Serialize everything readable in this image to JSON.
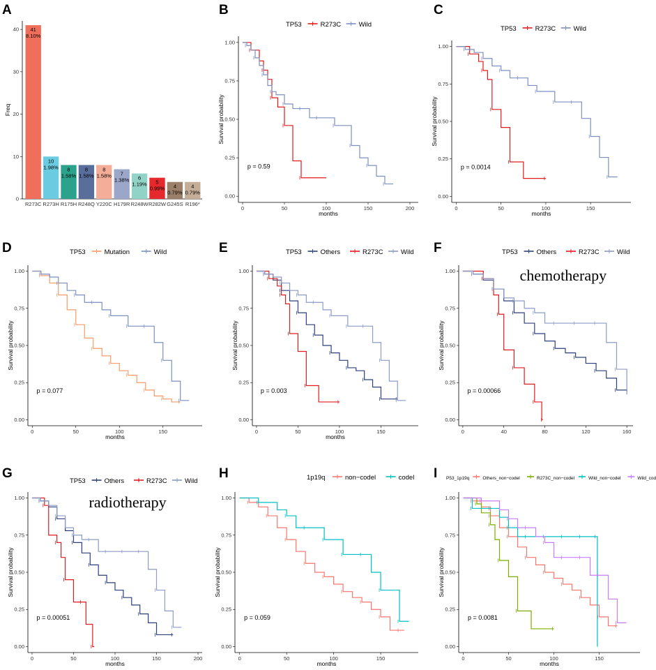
{
  "chart_data": [
    {
      "panel": "A",
      "type": "bar",
      "ylabel": "Freq",
      "xlabel": "",
      "ylim": [
        0,
        42
      ],
      "yticks": [
        0,
        10,
        20,
        30,
        40
      ],
      "categories": [
        "R273C",
        "R273H",
        "R175H",
        "R248Q",
        "Y220C",
        "H179R",
        "R248W",
        "R282W",
        "G245S",
        "R196*"
      ],
      "values": [
        41,
        10,
        8,
        8,
        8,
        7,
        6,
        5,
        4,
        4
      ],
      "percent_labels": [
        "8.10%",
        "1.98%",
        "1.58%",
        "1.58%",
        "1.58%",
        "1.38%",
        "1.19%",
        "0.99%",
        "0.79%",
        "0.79%"
      ],
      "colors": [
        "#ef6f5a",
        "#6bcbe0",
        "#2aa28c",
        "#5a6e9c",
        "#f4ad98",
        "#9ba7c9",
        "#92d3c7",
        "#e42a2c",
        "#9c7f69",
        "#c4ae98"
      ]
    },
    {
      "panel": "B",
      "type": "line",
      "legend_title": "TP53",
      "xlabel": "months",
      "ylabel": "Survival probability",
      "xlim": [
        -5,
        210
      ],
      "xticks": [
        0,
        50,
        100,
        150,
        200
      ],
      "ylim": [
        -0.04,
        1.04
      ],
      "yticks": [
        "0.00",
        "0.25",
        "0.50",
        "0.75",
        "1.00"
      ],
      "p_value": "p = 0.59",
      "series": [
        {
          "name": "R273C",
          "color": "#e41a1c",
          "x": [
            0,
            10,
            20,
            25,
            30,
            35,
            42,
            50,
            60,
            70,
            100
          ],
          "y": [
            1,
            0.95,
            0.88,
            0.82,
            0.76,
            0.64,
            0.58,
            0.46,
            0.23,
            0.12,
            0.12
          ]
        },
        {
          "name": "Wild",
          "color": "#7b8fc1",
          "x": [
            0,
            5,
            10,
            15,
            20,
            25,
            30,
            35,
            40,
            50,
            60,
            70,
            80,
            90,
            100,
            110,
            120,
            130,
            140,
            150,
            160,
            170,
            180
          ],
          "y": [
            1,
            0.98,
            0.95,
            0.9,
            0.85,
            0.79,
            0.72,
            0.68,
            0.66,
            0.6,
            0.57,
            0.57,
            0.51,
            0.51,
            0.51,
            0.46,
            0.46,
            0.33,
            0.25,
            0.2,
            0.13,
            0.08,
            0.08
          ]
        }
      ]
    },
    {
      "panel": "C",
      "type": "line",
      "legend_title": "TP53",
      "xlabel": "months",
      "ylabel": "Survival probability",
      "xlim": [
        -5,
        195
      ],
      "xticks": [
        0,
        50,
        100,
        150
      ],
      "ylim": [
        -0.04,
        1.04
      ],
      "yticks": [
        "0.00",
        "0.25",
        "0.50",
        "0.75",
        "1.00"
      ],
      "p_value": "p = 0.0014",
      "series": [
        {
          "name": "R273C",
          "color": "#e41a1c",
          "x": [
            0,
            15,
            25,
            30,
            35,
            40,
            50,
            60,
            75,
            100
          ],
          "y": [
            1,
            0.95,
            0.9,
            0.84,
            0.78,
            0.58,
            0.46,
            0.23,
            0.12,
            0.12
          ]
        },
        {
          "name": "Wild",
          "color": "#7b8fc1",
          "x": [
            0,
            10,
            20,
            30,
            40,
            50,
            60,
            70,
            80,
            90,
            100,
            110,
            120,
            130,
            140,
            150,
            160,
            170,
            180
          ],
          "y": [
            1,
            0.98,
            0.96,
            0.92,
            0.87,
            0.84,
            0.79,
            0.79,
            0.74,
            0.7,
            0.7,
            0.63,
            0.63,
            0.63,
            0.52,
            0.4,
            0.26,
            0.13,
            0.13
          ]
        }
      ]
    },
    {
      "panel": "D",
      "type": "line",
      "legend_title": "TP53",
      "xlabel": "months",
      "ylabel": "Survival probability",
      "xlim": [
        -5,
        195
      ],
      "xticks": [
        0,
        50,
        100,
        150
      ],
      "ylim": [
        -0.04,
        1.04
      ],
      "yticks": [
        "0.00",
        "0.25",
        "0.50",
        "0.75",
        "1.00"
      ],
      "p_value": "p = 0.077",
      "series": [
        {
          "name": "Mutation",
          "color": "#f79b69",
          "x": [
            0,
            10,
            20,
            30,
            40,
            50,
            60,
            70,
            80,
            90,
            100,
            110,
            120,
            130,
            140,
            150,
            160,
            170
          ],
          "y": [
            1,
            0.97,
            0.92,
            0.84,
            0.74,
            0.64,
            0.55,
            0.48,
            0.43,
            0.38,
            0.33,
            0.3,
            0.25,
            0.2,
            0.16,
            0.14,
            0.12,
            0.12
          ]
        },
        {
          "name": "Wild",
          "color": "#7b8fc1",
          "x": [
            0,
            10,
            20,
            30,
            40,
            50,
            60,
            70,
            80,
            90,
            100,
            110,
            120,
            130,
            140,
            150,
            160,
            170,
            180
          ],
          "y": [
            1,
            0.98,
            0.96,
            0.92,
            0.87,
            0.84,
            0.79,
            0.79,
            0.74,
            0.7,
            0.7,
            0.63,
            0.63,
            0.63,
            0.52,
            0.4,
            0.26,
            0.13,
            0.13
          ]
        }
      ]
    },
    {
      "panel": "E",
      "type": "line",
      "legend_title": "TP53",
      "xlabel": "months",
      "ylabel": "Survival probability",
      "xlim": [
        -5,
        195
      ],
      "xticks": [
        0,
        50,
        100,
        150
      ],
      "ylim": [
        -0.04,
        1.04
      ],
      "yticks": [
        "0.00",
        "0.25",
        "0.50",
        "0.75",
        "1.00"
      ],
      "p_value": "p = 0.003",
      "series": [
        {
          "name": "Others",
          "color": "#2d3f7d",
          "x": [
            0,
            10,
            20,
            30,
            40,
            50,
            60,
            70,
            80,
            90,
            100,
            110,
            120,
            130,
            140,
            150,
            160,
            170
          ],
          "y": [
            1,
            0.98,
            0.94,
            0.87,
            0.8,
            0.72,
            0.64,
            0.57,
            0.5,
            0.45,
            0.4,
            0.35,
            0.33,
            0.27,
            0.22,
            0.14,
            0.14,
            0.14
          ]
        },
        {
          "name": "R273C",
          "color": "#e41a1c",
          "x": [
            0,
            15,
            25,
            30,
            35,
            40,
            50,
            60,
            75,
            100
          ],
          "y": [
            1,
            0.95,
            0.9,
            0.84,
            0.78,
            0.58,
            0.46,
            0.23,
            0.12,
            0.12
          ]
        },
        {
          "name": "Wild",
          "color": "#8c9bc7",
          "x": [
            0,
            10,
            20,
            30,
            40,
            50,
            60,
            70,
            80,
            90,
            100,
            110,
            120,
            130,
            140,
            150,
            160,
            170,
            180
          ],
          "y": [
            1,
            0.98,
            0.96,
            0.92,
            0.87,
            0.84,
            0.79,
            0.79,
            0.74,
            0.7,
            0.7,
            0.63,
            0.63,
            0.63,
            0.52,
            0.4,
            0.26,
            0.13,
            0.13
          ]
        }
      ]
    },
    {
      "panel": "F",
      "type": "line",
      "legend_title": "TP53",
      "xlabel": "",
      "ylabel": "Survival probability",
      "xlim": [
        -4,
        166
      ],
      "xticks": [
        0,
        40,
        80,
        120,
        160
      ],
      "ylim": [
        -0.04,
        1.04
      ],
      "yticks": [
        "0.00",
        "0.25",
        "0.50",
        "0.75",
        "1.00"
      ],
      "p_value": "p = 0.00066",
      "annotation": "chemotherapy",
      "series": [
        {
          "name": "Others",
          "color": "#2d3f7d",
          "x": [
            0,
            10,
            20,
            30,
            40,
            50,
            60,
            70,
            80,
            90,
            100,
            110,
            120,
            130,
            140,
            150,
            160
          ],
          "y": [
            1,
            0.98,
            0.94,
            0.88,
            0.8,
            0.72,
            0.65,
            0.58,
            0.53,
            0.48,
            0.45,
            0.42,
            0.38,
            0.33,
            0.28,
            0.2,
            0.19
          ]
        },
        {
          "name": "R273C",
          "color": "#e41a1c",
          "x": [
            0,
            20,
            30,
            35,
            40,
            50,
            60,
            70,
            77,
            78
          ],
          "y": [
            1,
            0.95,
            0.84,
            0.71,
            0.47,
            0.35,
            0.24,
            0.12,
            0.0,
            0.0
          ]
        },
        {
          "name": "Wild",
          "color": "#8c9bc7",
          "x": [
            0,
            10,
            20,
            30,
            40,
            50,
            60,
            70,
            80,
            90,
            100,
            110,
            120,
            130,
            140,
            150,
            160
          ],
          "y": [
            1,
            0.98,
            0.95,
            0.88,
            0.82,
            0.8,
            0.75,
            0.72,
            0.65,
            0.65,
            0.65,
            0.65,
            0.65,
            0.65,
            0.52,
            0.34,
            0.17
          ]
        }
      ]
    },
    {
      "panel": "G",
      "type": "line",
      "legend_title": "TP53",
      "xlabel": "months",
      "ylabel": "Survival probability",
      "xlim": [
        -5,
        205
      ],
      "xticks": [
        0,
        50,
        100,
        150,
        200
      ],
      "ylim": [
        -0.04,
        1.04
      ],
      "yticks": [
        "0.00",
        "0.25",
        "0.50",
        "0.75",
        "1.00"
      ],
      "p_value": "p = 0.00051",
      "annotation": "radiotherapy",
      "series": [
        {
          "name": "Others",
          "color": "#2d3f7d",
          "x": [
            0,
            10,
            20,
            30,
            40,
            50,
            60,
            70,
            80,
            90,
            100,
            110,
            120,
            130,
            140,
            150,
            160,
            170
          ],
          "y": [
            1,
            0.98,
            0.94,
            0.86,
            0.78,
            0.7,
            0.63,
            0.55,
            0.48,
            0.43,
            0.38,
            0.33,
            0.28,
            0.22,
            0.16,
            0.08,
            0.08,
            0.08
          ]
        },
        {
          "name": "R273C",
          "color": "#e41a1c",
          "x": [
            0,
            15,
            20,
            30,
            35,
            40,
            50,
            60,
            65,
            73,
            75
          ],
          "y": [
            1,
            0.95,
            0.75,
            0.7,
            0.6,
            0.45,
            0.3,
            0.3,
            0.15,
            0.0,
            0.0
          ]
        },
        {
          "name": "Wild",
          "color": "#8c9bc7",
          "x": [
            0,
            10,
            20,
            30,
            40,
            50,
            60,
            70,
            80,
            90,
            100,
            110,
            120,
            130,
            140,
            150,
            160,
            170,
            180
          ],
          "y": [
            1,
            0.98,
            0.95,
            0.88,
            0.8,
            0.75,
            0.72,
            0.72,
            0.64,
            0.64,
            0.64,
            0.64,
            0.64,
            0.64,
            0.52,
            0.38,
            0.24,
            0.13,
            0.13
          ]
        }
      ]
    },
    {
      "panel": "H",
      "type": "line",
      "legend_title": "1p19q",
      "xlabel": "months",
      "ylabel": "Survival probability",
      "xlim": [
        -5,
        190
      ],
      "xticks": [
        0,
        50,
        100,
        150
      ],
      "ylim": [
        -0.04,
        1.04
      ],
      "yticks": [
        "0.00",
        "0.25",
        "0.50",
        "0.75",
        "1.00"
      ],
      "p_value": "p = 0.059",
      "series": [
        {
          "name": "non−codel",
          "color": "#f8766d",
          "x": [
            0,
            10,
            20,
            30,
            40,
            50,
            60,
            70,
            80,
            90,
            100,
            110,
            120,
            130,
            140,
            150,
            160,
            170,
            175
          ],
          "y": [
            1,
            0.97,
            0.94,
            0.88,
            0.8,
            0.72,
            0.64,
            0.56,
            0.5,
            0.47,
            0.42,
            0.37,
            0.33,
            0.3,
            0.25,
            0.2,
            0.11,
            0.11,
            0.11
          ]
        },
        {
          "name": "codel",
          "color": "#00bfc4",
          "x": [
            0,
            20,
            40,
            50,
            60,
            70,
            80,
            90,
            100,
            110,
            120,
            130,
            140,
            150,
            160,
            170,
            180
          ],
          "y": [
            1,
            0.97,
            0.92,
            0.88,
            0.8,
            0.8,
            0.8,
            0.72,
            0.72,
            0.62,
            0.62,
            0.62,
            0.5,
            0.38,
            0.38,
            0.17,
            0.17
          ]
        }
      ]
    },
    {
      "panel": "I",
      "type": "line",
      "legend_title": "P53_1p19q",
      "xlabel": "months",
      "ylabel": "Survival probability",
      "xlim": [
        -5,
        195
      ],
      "xticks": [
        0,
        50,
        100,
        150
      ],
      "ylim": [
        -0.04,
        1.04
      ],
      "yticks": [
        "0.00",
        "0.25",
        "0.50",
        "0.75",
        "1.00"
      ],
      "p_value": "p = 0.0081",
      "series": [
        {
          "name": "Others_non−codel",
          "color": "#f8766d",
          "x": [
            0,
            10,
            20,
            30,
            40,
            50,
            60,
            70,
            80,
            90,
            100,
            110,
            120,
            130,
            140,
            150,
            160,
            170
          ],
          "y": [
            1,
            0.98,
            0.94,
            0.88,
            0.8,
            0.74,
            0.67,
            0.6,
            0.55,
            0.5,
            0.46,
            0.42,
            0.38,
            0.33,
            0.28,
            0.2,
            0.14,
            0.14
          ]
        },
        {
          "name": "R273C_non−codel",
          "color": "#7cae00",
          "x": [
            0,
            15,
            20,
            30,
            35,
            40,
            50,
            60,
            75,
            100
          ],
          "y": [
            1,
            0.96,
            0.9,
            0.82,
            0.72,
            0.58,
            0.47,
            0.24,
            0.12,
            0.12
          ]
        },
        {
          "name": "Wild_non−codel",
          "color": "#00bfc4",
          "x": [
            0,
            10,
            20,
            30,
            40,
            50,
            60,
            70,
            80,
            90,
            100,
            110,
            120,
            130,
            140,
            147,
            148
          ],
          "y": [
            1,
            0.93,
            0.93,
            0.93,
            0.87,
            0.8,
            0.74,
            0.74,
            0.74,
            0.74,
            0.74,
            0.74,
            0.74,
            0.74,
            0.74,
            0.74,
            0.0
          ]
        },
        {
          "name": "Wild_codel",
          "color": "#c77cff",
          "x": [
            0,
            20,
            40,
            50,
            60,
            70,
            80,
            90,
            100,
            110,
            120,
            130,
            140,
            150,
            160,
            170,
            180
          ],
          "y": [
            1,
            0.98,
            0.92,
            0.86,
            0.8,
            0.8,
            0.74,
            0.7,
            0.6,
            0.6,
            0.6,
            0.6,
            0.48,
            0.48,
            0.32,
            0.16,
            0.16
          ]
        }
      ]
    }
  ]
}
